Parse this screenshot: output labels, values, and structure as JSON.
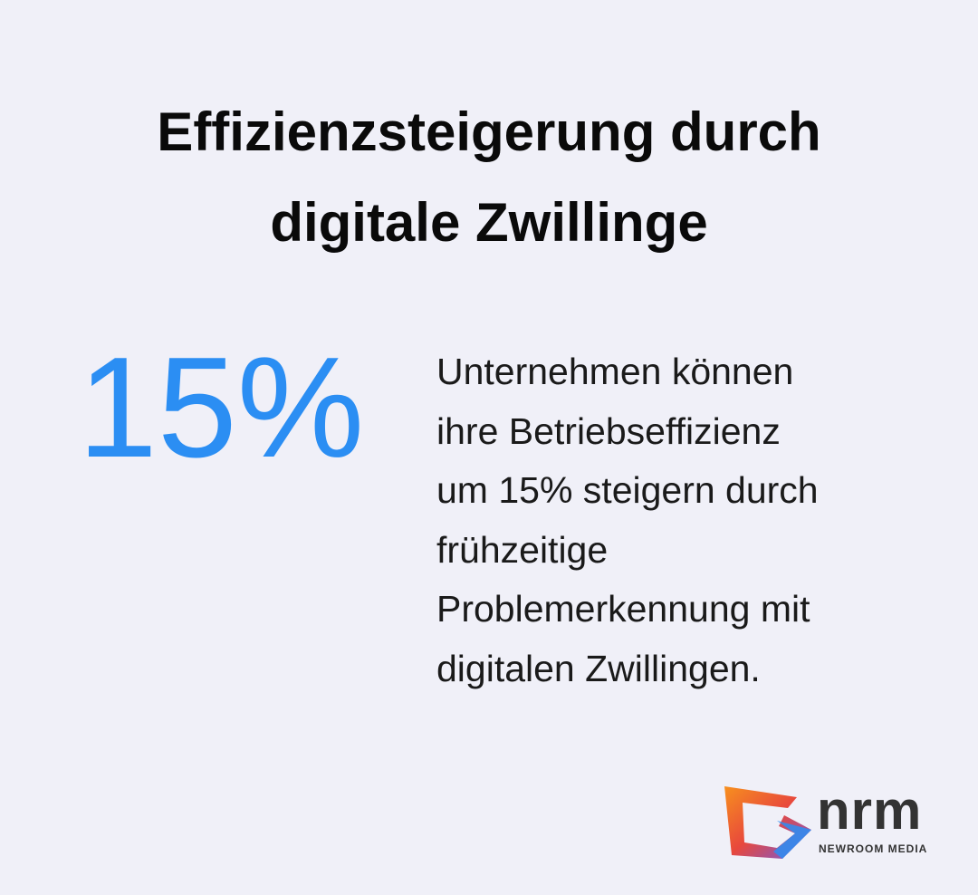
{
  "header": {
    "title_lines": [
      "Effizienzsteigerung durch",
      "digitale Zwillinge"
    ]
  },
  "stat": {
    "value": "15%",
    "description_lines": [
      "Unternehmen können",
      "ihre Betriebseffizienz",
      "um 15% steigern durch",
      "frühzeitige",
      "Problemerkennung mit",
      "digitalen Zwillingen."
    ]
  },
  "logo": {
    "name": "nrm",
    "subtitle": "NEWROOM MEDIA"
  }
}
